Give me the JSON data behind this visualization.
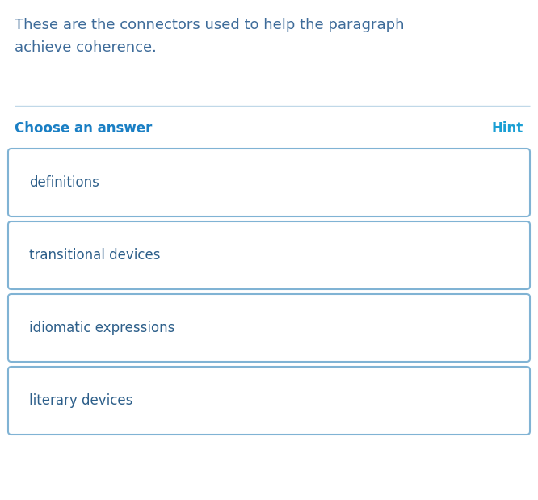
{
  "question_text_line1": "These are the connectors used to help the paragraph",
  "question_text_line2": "achieve coherence.",
  "choose_label": "Choose an answer",
  "hint_label": "Hint",
  "choices": [
    "definitions",
    "transitional devices",
    "idiomatic expressions",
    "literary devices"
  ],
  "bg_color": "#ffffff",
  "question_text_color": "#3d6b99",
  "box_border_color": "#80b3d4",
  "box_fill_color": "#ffffff",
  "box_text_color": "#2d5f8a",
  "divider_color": "#c0d8e8",
  "hint_color": "#1a9fd4",
  "choose_color": "#1a7fc4",
  "fig_width": 6.66,
  "fig_height": 6.19,
  "dpi": 100
}
